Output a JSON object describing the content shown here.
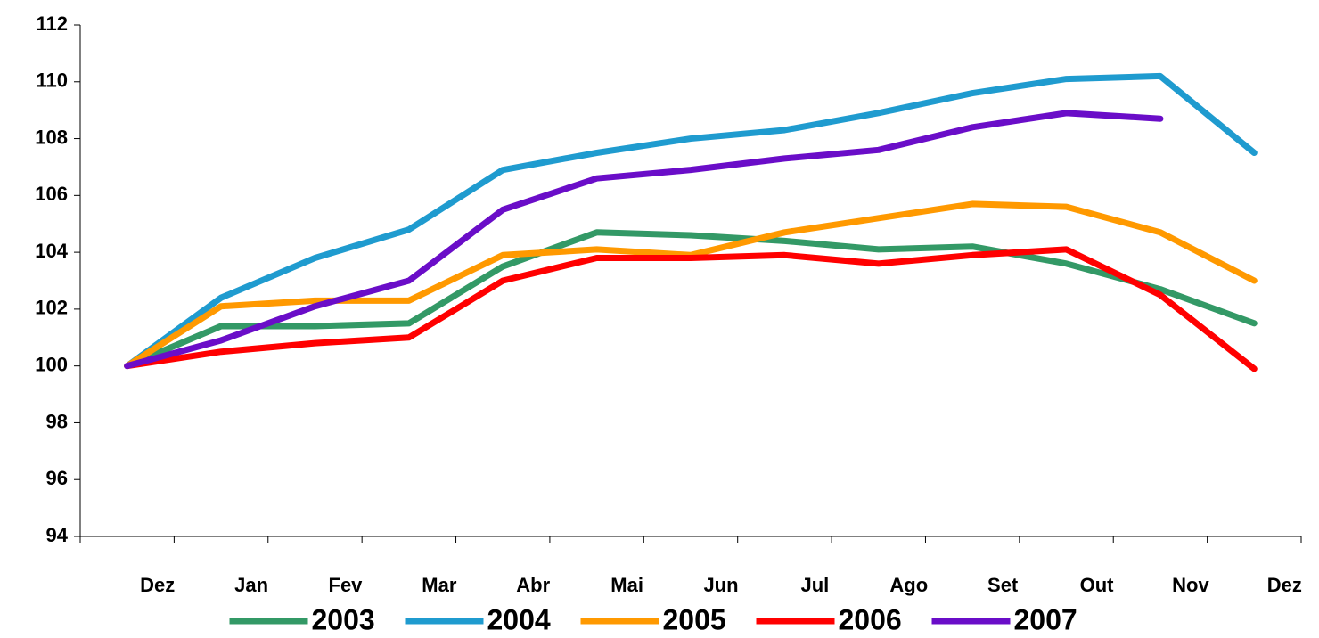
{
  "chart_data": {
    "type": "line",
    "categories": [
      "Dez",
      "Jan",
      "Fev",
      "Mar",
      "Abr",
      "Mai",
      "Jun",
      "Jul",
      "Ago",
      "Set",
      "Out",
      "Nov",
      "Dez"
    ],
    "series": [
      {
        "name": "2003",
        "color": "#339966",
        "values": [
          100,
          101.4,
          101.4,
          101.5,
          103.5,
          104.7,
          104.6,
          104.4,
          104.1,
          104.2,
          103.6,
          102.7,
          101.5
        ]
      },
      {
        "name": "2004",
        "color": "#1f9bcf",
        "values": [
          100,
          102.4,
          103.8,
          104.8,
          106.9,
          107.5,
          108.0,
          108.3,
          108.9,
          109.6,
          110.1,
          110.2,
          107.5
        ]
      },
      {
        "name": "2005",
        "color": "#ff9900",
        "values": [
          100,
          102.1,
          102.3,
          102.3,
          103.9,
          104.1,
          103.9,
          104.7,
          105.2,
          105.7,
          105.6,
          104.7,
          103.0
        ]
      },
      {
        "name": "2006",
        "color": "#ff0000",
        "values": [
          100,
          100.5,
          100.8,
          101.0,
          103.0,
          103.8,
          103.8,
          103.9,
          103.6,
          103.9,
          104.1,
          102.5,
          99.9
        ]
      },
      {
        "name": "2007",
        "color": "#6a0dc8",
        "values": [
          100,
          100.9,
          102.1,
          103.0,
          105.5,
          106.6,
          106.9,
          107.3,
          107.6,
          108.4,
          108.9,
          108.7,
          null
        ]
      }
    ],
    "ylim": [
      94,
      112
    ],
    "yticks": [
      94,
      96,
      98,
      100,
      102,
      104,
      106,
      108,
      110,
      112
    ],
    "legend": "bottom"
  }
}
